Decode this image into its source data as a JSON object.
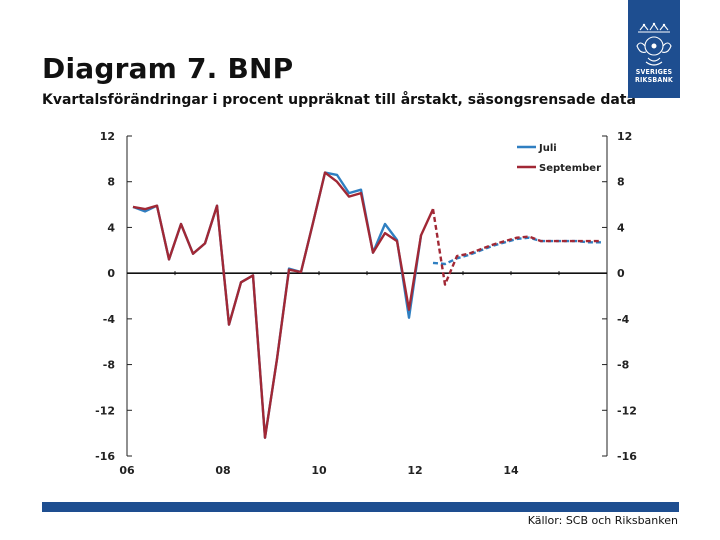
{
  "title": "Diagram 7. BNP",
  "subtitle": "Kvartalsförändringar i procent uppräknat till årstakt, säsongsrensade data",
  "source": "Källor: SCB och Riksbanken",
  "logo": {
    "line1": "SVERIGES",
    "line2": "RIKSBANK"
  },
  "colors": {
    "brand": "#1e4e90",
    "juli": "#2f7fc1",
    "september": "#a12835"
  },
  "chart_data": {
    "type": "line",
    "title": "",
    "xlabel": "",
    "ylabel": "",
    "x_ticks": [
      "06",
      "08",
      "10",
      "12",
      "14"
    ],
    "x_tick_values": [
      2006,
      2008,
      2010,
      2012,
      2014
    ],
    "xlim": [
      2006,
      2016
    ],
    "ylim": [
      -16,
      12
    ],
    "y_ticks": [
      12,
      8,
      4,
      0,
      -4,
      -8,
      -12,
      -16
    ],
    "legend_position": "top-right",
    "series": [
      {
        "name": "Juli",
        "color": "#2f7fc1",
        "dashed_from": 2012.25,
        "points": [
          [
            2006.125,
            5.8
          ],
          [
            2006.375,
            5.4
          ],
          [
            2006.625,
            5.9
          ],
          [
            2006.875,
            1.2
          ],
          [
            2007.125,
            4.3
          ],
          [
            2007.375,
            1.7
          ],
          [
            2007.625,
            2.6
          ],
          [
            2007.875,
            5.9
          ],
          [
            2008.125,
            -4.5
          ],
          [
            2008.375,
            -0.8
          ],
          [
            2008.625,
            -0.2
          ],
          [
            2008.875,
            -14.4
          ],
          [
            2009.125,
            -7.5
          ],
          [
            2009.375,
            0.4
          ],
          [
            2009.625,
            0.1
          ],
          [
            2009.875,
            4.4
          ],
          [
            2010.125,
            8.8
          ],
          [
            2010.375,
            8.6
          ],
          [
            2010.625,
            7.0
          ],
          [
            2010.875,
            7.3
          ],
          [
            2011.125,
            1.8
          ],
          [
            2011.375,
            4.3
          ],
          [
            2011.625,
            2.9
          ],
          [
            2011.875,
            -3.9
          ],
          [
            2012.125,
            3.3
          ],
          [
            2012.375,
            0.9
          ],
          [
            2012.625,
            0.8
          ],
          [
            2012.875,
            1.3
          ],
          [
            2013.125,
            1.6
          ],
          [
            2013.375,
            2.0
          ],
          [
            2013.625,
            2.4
          ],
          [
            2013.875,
            2.7
          ],
          [
            2014.125,
            3.0
          ],
          [
            2014.375,
            3.1
          ],
          [
            2014.625,
            2.8
          ],
          [
            2014.875,
            2.8
          ],
          [
            2015.125,
            2.8
          ],
          [
            2015.375,
            2.8
          ],
          [
            2015.625,
            2.7
          ],
          [
            2015.875,
            2.7
          ]
        ]
      },
      {
        "name": "September",
        "color": "#a12835",
        "dashed_from": 2012.375,
        "points": [
          [
            2006.125,
            5.8
          ],
          [
            2006.375,
            5.6
          ],
          [
            2006.625,
            5.9
          ],
          [
            2006.875,
            1.2
          ],
          [
            2007.125,
            4.3
          ],
          [
            2007.375,
            1.7
          ],
          [
            2007.625,
            2.6
          ],
          [
            2007.875,
            5.9
          ],
          [
            2008.125,
            -4.5
          ],
          [
            2008.375,
            -0.8
          ],
          [
            2008.625,
            -0.2
          ],
          [
            2008.875,
            -14.4
          ],
          [
            2009.125,
            -7.5
          ],
          [
            2009.375,
            0.3
          ],
          [
            2009.625,
            0.1
          ],
          [
            2009.875,
            4.4
          ],
          [
            2010.125,
            8.8
          ],
          [
            2010.375,
            8.0
          ],
          [
            2010.625,
            6.7
          ],
          [
            2010.875,
            7.0
          ],
          [
            2011.125,
            1.8
          ],
          [
            2011.375,
            3.5
          ],
          [
            2011.625,
            2.8
          ],
          [
            2011.875,
            -3.2
          ],
          [
            2012.125,
            3.3
          ],
          [
            2012.375,
            5.6
          ],
          [
            2012.625,
            -1.0
          ],
          [
            2012.875,
            1.5
          ],
          [
            2013.125,
            1.7
          ],
          [
            2013.375,
            2.1
          ],
          [
            2013.625,
            2.5
          ],
          [
            2013.875,
            2.8
          ],
          [
            2014.125,
            3.1
          ],
          [
            2014.375,
            3.2
          ],
          [
            2014.625,
            2.8
          ],
          [
            2014.875,
            2.8
          ],
          [
            2015.125,
            2.8
          ],
          [
            2015.375,
            2.8
          ],
          [
            2015.625,
            2.8
          ],
          [
            2015.875,
            2.8
          ]
        ]
      }
    ]
  }
}
